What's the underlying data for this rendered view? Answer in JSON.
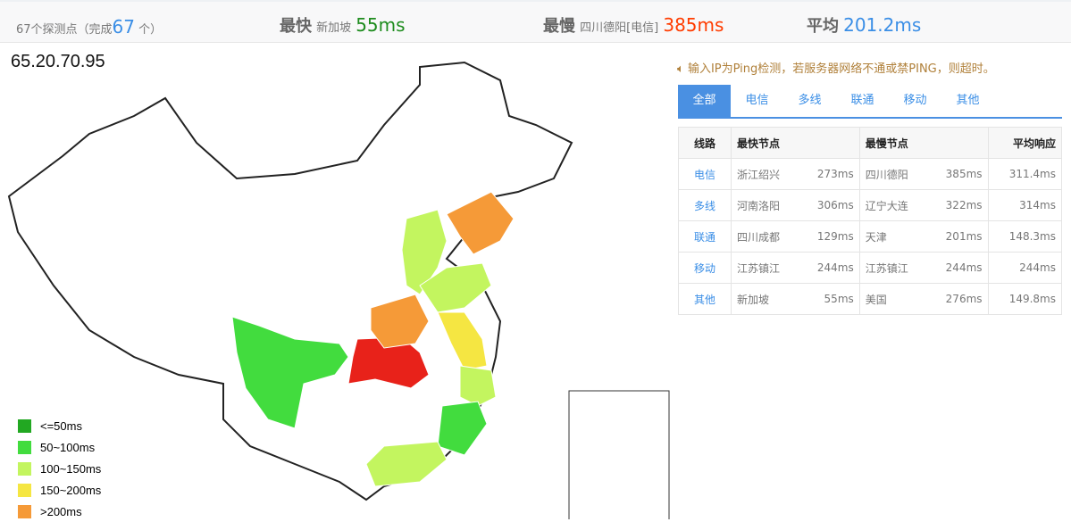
{
  "summary": {
    "probe_text": "67个探测点（完成",
    "done_count": "67",
    "done_suffix": "个）",
    "fastest_label": "最快",
    "fastest_node": "新加坡",
    "fastest_value": "55ms",
    "slowest_label": "最慢",
    "slowest_node": "四川德阳[电信]",
    "slowest_value": "385ms",
    "avg_label": "平均",
    "avg_value": "201.2ms"
  },
  "ip": "65.20.70.95",
  "notice": "输入IP为Ping检测，若服务器网络不通或禁PING，则超时。",
  "tabs": [
    "全部",
    "电信",
    "多线",
    "联通",
    "移动",
    "其他"
  ],
  "table": {
    "headers": [
      "线路",
      "最快节点",
      "最慢节点",
      "平均响应"
    ],
    "rows": [
      [
        "电信",
        "浙江绍兴",
        "273ms",
        "四川德阳",
        "385ms",
        "311.4ms"
      ],
      [
        "多线",
        "河南洛阳",
        "306ms",
        "辽宁大连",
        "322ms",
        "314ms"
      ],
      [
        "联通",
        "四川成都",
        "129ms",
        "天津",
        "201ms",
        "148.3ms"
      ],
      [
        "移动",
        "江苏镇江",
        "244ms",
        "江苏镇江",
        "244ms",
        "244ms"
      ],
      [
        "其他",
        "新加坡",
        "55ms",
        "美国",
        "276ms",
        "149.8ms"
      ]
    ]
  },
  "legend": [
    {
      "label": "<=50ms",
      "color": "#22a822"
    },
    {
      "label": "50~100ms",
      "color": "#42dc3e"
    },
    {
      "label": "100~150ms",
      "color": "#c3f55f"
    },
    {
      "label": "150~200ms",
      "color": "#f5e642"
    },
    {
      "label": ">200ms",
      "color": "#f59a38"
    }
  ],
  "colors": {
    "accent": "#4a90e2",
    "fast": "#1e8c1e",
    "slow": "#ff3c00",
    "very_slow": "#e8221a"
  }
}
